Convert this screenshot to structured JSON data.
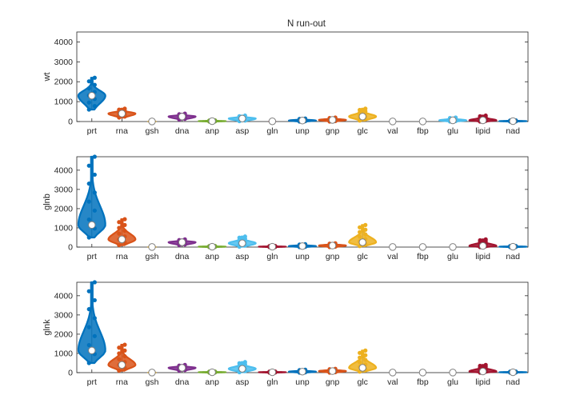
{
  "title": "N run-out",
  "categories": [
    "prt",
    "rna",
    "gsh",
    "dna",
    "anp",
    "asp",
    "gln",
    "unp",
    "gnp",
    "glc",
    "val",
    "fbp",
    "glu",
    "lipid",
    "nad"
  ],
  "colors": {
    "prt": "#0072BD",
    "rna": "#D95319",
    "gsh": "#EDB120",
    "dna": "#7E2F8E",
    "anp": "#77AC30",
    "asp": "#4DBEEE",
    "gln": "#A2142F",
    "unp": "#0072BD",
    "gnp": "#D95319",
    "glc": "#EDB120",
    "val": "#7E2F8E",
    "fbp": "#77AC30",
    "glu": "#4DBEEE",
    "lipid": "#A2142F",
    "nad": "#0072BD"
  },
  "chart_data": [
    {
      "type": "violin",
      "ylabel": "wt",
      "ylim": [
        0,
        4500
      ],
      "yticks": [
        0,
        1000,
        2000,
        3000,
        4000
      ],
      "categories": [
        "prt",
        "rna",
        "gsh",
        "dna",
        "anp",
        "asp",
        "gln",
        "unp",
        "gnp",
        "glc",
        "val",
        "fbp",
        "glu",
        "lipid",
        "nad"
      ],
      "series": [
        {
          "category": "prt",
          "median": 1300,
          "min": 600,
          "max": 2200,
          "halfwidth": 0.45
        },
        {
          "category": "rna",
          "median": 400,
          "min": 200,
          "max": 650,
          "halfwidth": 0.45
        },
        {
          "category": "gsh",
          "median": 5,
          "min": 0,
          "max": 20,
          "halfwidth": 0.12
        },
        {
          "category": "dna",
          "median": 250,
          "min": 100,
          "max": 400,
          "halfwidth": 0.45
        },
        {
          "category": "anp",
          "median": 20,
          "min": 0,
          "max": 60,
          "halfwidth": 0.45
        },
        {
          "category": "asp",
          "median": 150,
          "min": 20,
          "max": 300,
          "halfwidth": 0.45
        },
        {
          "category": "gln",
          "median": 10,
          "min": 0,
          "max": 20,
          "halfwidth": 0.1
        },
        {
          "category": "unp",
          "median": 50,
          "min": 0,
          "max": 150,
          "halfwidth": 0.45
        },
        {
          "category": "gnp",
          "median": 80,
          "min": 0,
          "max": 200,
          "halfwidth": 0.45
        },
        {
          "category": "glc",
          "median": 250,
          "min": 50,
          "max": 650,
          "halfwidth": 0.45
        },
        {
          "category": "val",
          "median": 5,
          "min": 0,
          "max": 10,
          "halfwidth": 0.05
        },
        {
          "category": "fbp",
          "median": 5,
          "min": 0,
          "max": 10,
          "halfwidth": 0.05
        },
        {
          "category": "glu",
          "median": 60,
          "min": 0,
          "max": 200,
          "halfwidth": 0.45
        },
        {
          "category": "lipid",
          "median": 60,
          "min": 0,
          "max": 300,
          "halfwidth": 0.45
        },
        {
          "category": "nad",
          "median": 20,
          "min": 0,
          "max": 60,
          "halfwidth": 0.45
        }
      ]
    },
    {
      "type": "violin",
      "ylabel": "glnb",
      "ylim": [
        0,
        4700
      ],
      "yticks": [
        0,
        1000,
        2000,
        3000,
        4000
      ],
      "categories": [
        "prt",
        "rna",
        "gsh",
        "dna",
        "anp",
        "asp",
        "gln",
        "unp",
        "gnp",
        "glc",
        "val",
        "fbp",
        "glu",
        "lipid",
        "nad"
      ],
      "series": [
        {
          "category": "prt",
          "median": 1150,
          "min": 500,
          "max": 4700,
          "halfwidth": 0.45
        },
        {
          "category": "rna",
          "median": 400,
          "min": 100,
          "max": 1450,
          "halfwidth": 0.45
        },
        {
          "category": "gsh",
          "median": 5,
          "min": 0,
          "max": 20,
          "halfwidth": 0.12
        },
        {
          "category": "dna",
          "median": 250,
          "min": 100,
          "max": 400,
          "halfwidth": 0.45
        },
        {
          "category": "anp",
          "median": 20,
          "min": 0,
          "max": 60,
          "halfwidth": 0.45
        },
        {
          "category": "asp",
          "median": 200,
          "min": 20,
          "max": 550,
          "halfwidth": 0.45
        },
        {
          "category": "gln",
          "median": 20,
          "min": 0,
          "max": 60,
          "halfwidth": 0.45
        },
        {
          "category": "unp",
          "median": 50,
          "min": 0,
          "max": 150,
          "halfwidth": 0.45
        },
        {
          "category": "gnp",
          "median": 80,
          "min": 0,
          "max": 200,
          "halfwidth": 0.45
        },
        {
          "category": "glc",
          "median": 250,
          "min": 50,
          "max": 1150,
          "halfwidth": 0.45
        },
        {
          "category": "val",
          "median": 5,
          "min": 0,
          "max": 10,
          "halfwidth": 0.05
        },
        {
          "category": "fbp",
          "median": 5,
          "min": 0,
          "max": 10,
          "halfwidth": 0.05
        },
        {
          "category": "glu",
          "median": 5,
          "min": 0,
          "max": 10,
          "halfwidth": 0.05
        },
        {
          "category": "lipid",
          "median": 60,
          "min": 0,
          "max": 400,
          "halfwidth": 0.45
        },
        {
          "category": "nad",
          "median": 20,
          "min": 0,
          "max": 60,
          "halfwidth": 0.45
        }
      ]
    },
    {
      "type": "violin",
      "ylabel": "glnk",
      "ylim": [
        0,
        4700
      ],
      "yticks": [
        0,
        1000,
        2000,
        3000,
        4000
      ],
      "categories": [
        "prt",
        "rna",
        "gsh",
        "dna",
        "anp",
        "asp",
        "gln",
        "unp",
        "gnp",
        "glc",
        "val",
        "fbp",
        "glu",
        "lipid",
        "nad"
      ],
      "series": [
        {
          "category": "prt",
          "median": 1150,
          "min": 500,
          "max": 4700,
          "halfwidth": 0.45
        },
        {
          "category": "rna",
          "median": 400,
          "min": 100,
          "max": 1450,
          "halfwidth": 0.45
        },
        {
          "category": "gsh",
          "median": 5,
          "min": 0,
          "max": 20,
          "halfwidth": 0.12
        },
        {
          "category": "dna",
          "median": 250,
          "min": 100,
          "max": 400,
          "halfwidth": 0.45
        },
        {
          "category": "anp",
          "median": 20,
          "min": 0,
          "max": 60,
          "halfwidth": 0.45
        },
        {
          "category": "asp",
          "median": 200,
          "min": 20,
          "max": 550,
          "halfwidth": 0.45
        },
        {
          "category": "gln",
          "median": 20,
          "min": 0,
          "max": 60,
          "halfwidth": 0.45
        },
        {
          "category": "unp",
          "median": 50,
          "min": 0,
          "max": 150,
          "halfwidth": 0.45
        },
        {
          "category": "gnp",
          "median": 80,
          "min": 0,
          "max": 200,
          "halfwidth": 0.45
        },
        {
          "category": "glc",
          "median": 250,
          "min": 50,
          "max": 1150,
          "halfwidth": 0.45
        },
        {
          "category": "val",
          "median": 5,
          "min": 0,
          "max": 10,
          "halfwidth": 0.05
        },
        {
          "category": "fbp",
          "median": 5,
          "min": 0,
          "max": 10,
          "halfwidth": 0.05
        },
        {
          "category": "glu",
          "median": 5,
          "min": 0,
          "max": 10,
          "halfwidth": 0.05
        },
        {
          "category": "lipid",
          "median": 60,
          "min": 0,
          "max": 400,
          "halfwidth": 0.45
        },
        {
          "category": "nad",
          "median": 20,
          "min": 0,
          "max": 60,
          "halfwidth": 0.45
        }
      ]
    }
  ]
}
